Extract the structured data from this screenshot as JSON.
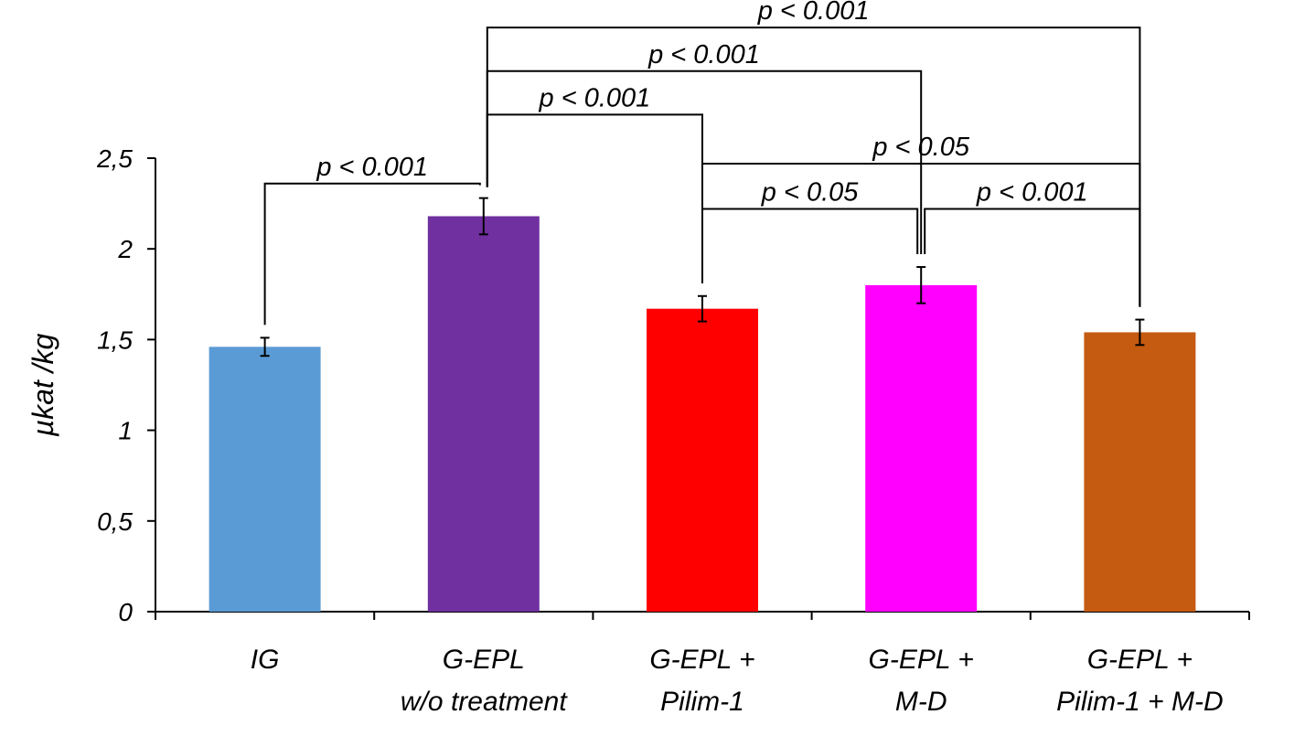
{
  "chart_data": {
    "type": "bar",
    "categories": [
      [
        "IG"
      ],
      [
        "G-EPL",
        "w/o treatment"
      ],
      [
        "G-EPL +",
        "Pilim-1"
      ],
      [
        "G-EPL +",
        "M-D"
      ],
      [
        "G-EPL +",
        "Pilim-1 + M-D"
      ]
    ],
    "values": [
      1.46,
      2.18,
      1.67,
      1.8,
      1.54
    ],
    "errors": [
      0.05,
      0.1,
      0.07,
      0.1,
      0.07
    ],
    "colors": [
      "#5b9bd5",
      "#7030a0",
      "#ff0000",
      "#ff00ff",
      "#c55a11"
    ],
    "ylabel": "µkat /kg",
    "ylim": [
      0,
      2.5
    ],
    "yticks": [
      0,
      0.5,
      1,
      1.5,
      2,
      2.5
    ],
    "ytick_labels": [
      "0",
      "0,5",
      "1",
      "1,5",
      "2",
      "2,5"
    ],
    "grid": false,
    "comparisons": [
      {
        "from": 0,
        "to": 1,
        "label": "p < 0.001",
        "level": 2.36
      },
      {
        "from": 1,
        "to": 2,
        "label": "p < 0.001",
        "level": 2.74
      },
      {
        "from": 1,
        "to": 3,
        "label": "p < 0.001",
        "level": 2.98
      },
      {
        "from": 1,
        "to": 4,
        "label": "p < 0.001",
        "level": 3.22
      },
      {
        "from": 2,
        "to": 4,
        "label": "p < 0.05",
        "level": 2.47
      },
      {
        "from": 2,
        "to": 3,
        "label": "p < 0.05",
        "level": 2.22
      },
      {
        "from": 3,
        "to": 4,
        "label": "p < 0.001",
        "level": 2.22
      }
    ]
  }
}
